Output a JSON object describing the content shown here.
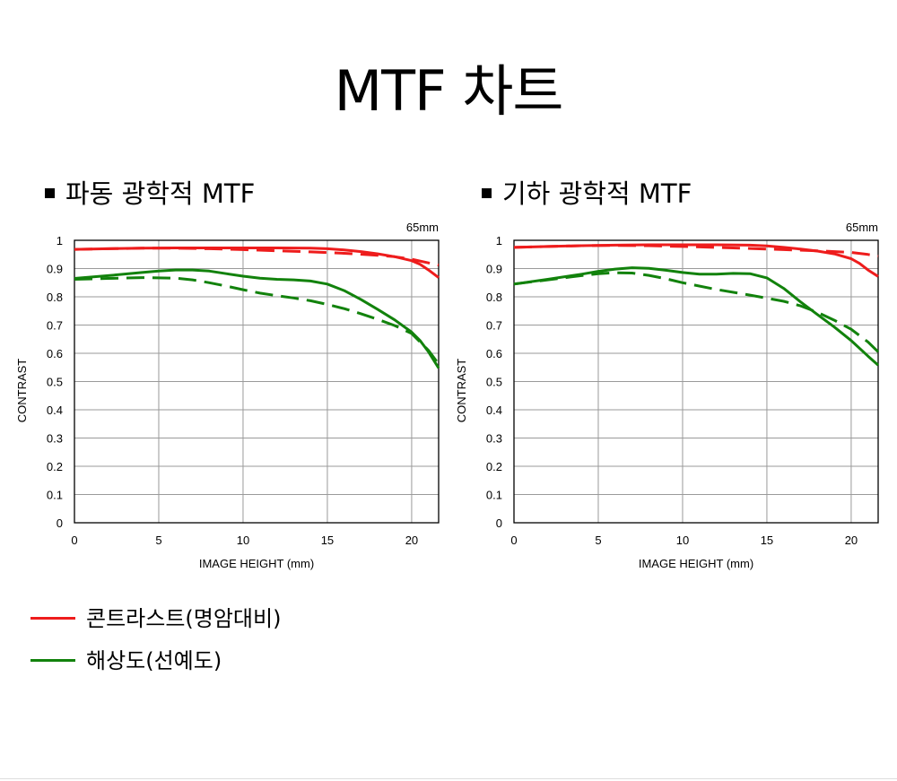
{
  "page": {
    "title": "MTF 차트"
  },
  "legend": {
    "items": [
      {
        "label": "콘트라스트(명암대비)",
        "color": "#ee1c1c"
      },
      {
        "label": "해상도(선예도)",
        "color": "#12820c"
      }
    ]
  },
  "colors": {
    "contrast": "#ee1c1c",
    "resolution": "#12820c",
    "grid": "#9a9a9a"
  },
  "chart_data": [
    {
      "type": "line",
      "title": "파동 광학적 MTF",
      "focal_length": "65mm",
      "xlabel": "IMAGE HEIGHT (mm)",
      "ylabel": "CONTRAST",
      "xlim": [
        0,
        21.6
      ],
      "ylim": [
        0,
        1
      ],
      "xticks": [
        0,
        5,
        10,
        15,
        20
      ],
      "yticks": [
        0,
        0.1,
        0.2,
        0.3,
        0.4,
        0.5,
        0.6,
        0.7,
        0.8,
        0.9,
        1
      ],
      "ytick_labels": [
        "0",
        "0.1",
        "0.2",
        "0.3",
        "0.4",
        "0.5",
        "0.6",
        "0.7",
        "0.8",
        "0.9",
        "1"
      ],
      "grid": true,
      "series": [
        {
          "color": "#ee1c1c",
          "dash": false,
          "x": [
            0,
            2,
            4,
            6,
            8,
            10,
            12,
            14,
            15,
            16,
            17,
            18,
            19,
            20,
            20.5,
            21,
            21.6
          ],
          "y": [
            0.968,
            0.97,
            0.972,
            0.973,
            0.973,
            0.973,
            0.973,
            0.972,
            0.97,
            0.966,
            0.96,
            0.952,
            0.942,
            0.928,
            0.915,
            0.895,
            0.868
          ]
        },
        {
          "color": "#ee1c1c",
          "dash": true,
          "x": [
            0,
            2,
            4,
            6,
            8,
            10,
            12,
            14,
            16,
            18,
            19,
            20,
            21,
            21.6
          ],
          "y": [
            0.968,
            0.97,
            0.972,
            0.972,
            0.97,
            0.967,
            0.963,
            0.959,
            0.954,
            0.947,
            0.942,
            0.933,
            0.92,
            0.912
          ]
        },
        {
          "color": "#12820c",
          "dash": false,
          "x": [
            0,
            2,
            4,
            5,
            6,
            7,
            8,
            9,
            10,
            11,
            12,
            13,
            14,
            15,
            16,
            17,
            18,
            19,
            20,
            20.5,
            21,
            21.6
          ],
          "y": [
            0.865,
            0.875,
            0.886,
            0.891,
            0.895,
            0.895,
            0.891,
            0.882,
            0.873,
            0.866,
            0.862,
            0.86,
            0.856,
            0.845,
            0.822,
            0.79,
            0.755,
            0.718,
            0.675,
            0.645,
            0.605,
            0.548
          ]
        },
        {
          "color": "#12820c",
          "dash": true,
          "x": [
            0,
            2,
            4,
            6,
            7,
            8,
            9,
            10,
            11,
            12,
            13,
            14,
            15,
            16,
            17,
            18,
            19,
            20,
            21,
            21.6
          ],
          "y": [
            0.862,
            0.865,
            0.868,
            0.866,
            0.86,
            0.85,
            0.838,
            0.825,
            0.813,
            0.804,
            0.796,
            0.786,
            0.773,
            0.758,
            0.74,
            0.72,
            0.698,
            0.67,
            0.61,
            0.562
          ]
        }
      ]
    },
    {
      "type": "line",
      "title": "기하 광학적 MTF",
      "focal_length": "65mm",
      "xlabel": "IMAGE HEIGHT (mm)",
      "ylabel": "CONTRAST",
      "xlim": [
        0,
        21.6
      ],
      "ylim": [
        0,
        1
      ],
      "xticks": [
        0,
        5,
        10,
        15,
        20
      ],
      "yticks": [
        0,
        0.1,
        0.2,
        0.3,
        0.4,
        0.5,
        0.6,
        0.7,
        0.8,
        0.9,
        1
      ],
      "ytick_labels": [
        "0",
        "0.1",
        "0.2",
        "0.3",
        "0.4",
        "0.5",
        "0.6",
        "0.7",
        "0.8",
        "0.9",
        "1"
      ],
      "grid": true,
      "series": [
        {
          "color": "#ee1c1c",
          "dash": false,
          "x": [
            0,
            2,
            4,
            6,
            8,
            10,
            12,
            14,
            15,
            16,
            17,
            18,
            19,
            20,
            20.5,
            21,
            21.6
          ],
          "y": [
            0.975,
            0.978,
            0.981,
            0.983,
            0.984,
            0.984,
            0.984,
            0.983,
            0.98,
            0.975,
            0.969,
            0.962,
            0.952,
            0.935,
            0.918,
            0.895,
            0.872
          ]
        },
        {
          "color": "#ee1c1c",
          "dash": true,
          "x": [
            0,
            2,
            4,
            6,
            8,
            10,
            12,
            14,
            16,
            18,
            20,
            21,
            21.6
          ],
          "y": [
            0.975,
            0.978,
            0.981,
            0.982,
            0.981,
            0.978,
            0.975,
            0.971,
            0.967,
            0.963,
            0.957,
            0.95,
            0.944
          ]
        },
        {
          "color": "#12820c",
          "dash": false,
          "x": [
            0,
            2,
            4,
            5,
            6,
            7,
            8,
            9,
            10,
            11,
            12,
            13,
            14,
            15,
            16,
            17,
            18,
            19,
            20,
            21,
            21.6
          ],
          "y": [
            0.845,
            0.862,
            0.88,
            0.89,
            0.898,
            0.903,
            0.901,
            0.894,
            0.886,
            0.88,
            0.88,
            0.883,
            0.882,
            0.867,
            0.83,
            0.782,
            0.737,
            0.693,
            0.645,
            0.59,
            0.558
          ]
        },
        {
          "color": "#12820c",
          "dash": true,
          "x": [
            0,
            2,
            4,
            5,
            6,
            7,
            8,
            9,
            10,
            12,
            14,
            16,
            17,
            18,
            19,
            20,
            21,
            21.6
          ],
          "y": [
            0.845,
            0.86,
            0.875,
            0.882,
            0.885,
            0.884,
            0.876,
            0.864,
            0.85,
            0.826,
            0.806,
            0.784,
            0.768,
            0.745,
            0.717,
            0.685,
            0.64,
            0.605
          ]
        }
      ]
    }
  ]
}
